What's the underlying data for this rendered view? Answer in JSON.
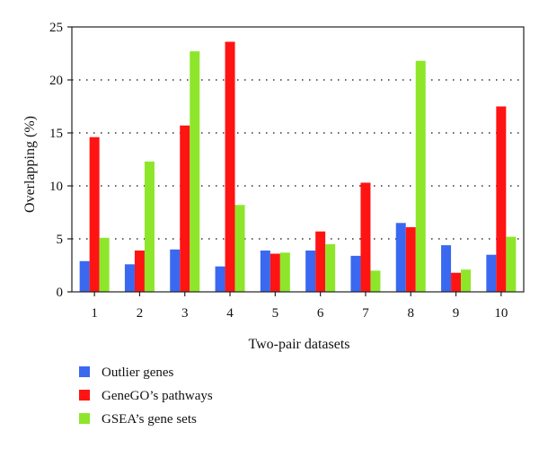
{
  "chart_data": {
    "type": "bar",
    "categories": [
      "1",
      "2",
      "3",
      "4",
      "5",
      "6",
      "7",
      "8",
      "9",
      "10"
    ],
    "series": [
      {
        "name": "Outlier genes",
        "color": "#3a68f0",
        "values": [
          2.9,
          2.6,
          4.0,
          2.4,
          3.9,
          3.9,
          3.4,
          6.5,
          4.4,
          3.5
        ]
      },
      {
        "name": "GeneGO’s pathways",
        "color": "#ff1414",
        "values": [
          14.6,
          3.9,
          15.7,
          23.6,
          3.6,
          5.7,
          10.3,
          6.1,
          1.8,
          17.5
        ]
      },
      {
        "name": "GSEA’s gene sets",
        "color": "#8ee62a",
        "values": [
          5.1,
          12.3,
          22.7,
          8.2,
          3.7,
          4.5,
          2.0,
          21.8,
          2.1,
          5.2
        ]
      }
    ],
    "xlabel": "Two-pair datasets",
    "ylabel": "Overlapping (%)",
    "ylim": [
      0,
      25
    ],
    "yticks": [
      0,
      5,
      10,
      15,
      20,
      25
    ],
    "grid": "horizontal dotted",
    "legend_position": "bottom-left"
  }
}
